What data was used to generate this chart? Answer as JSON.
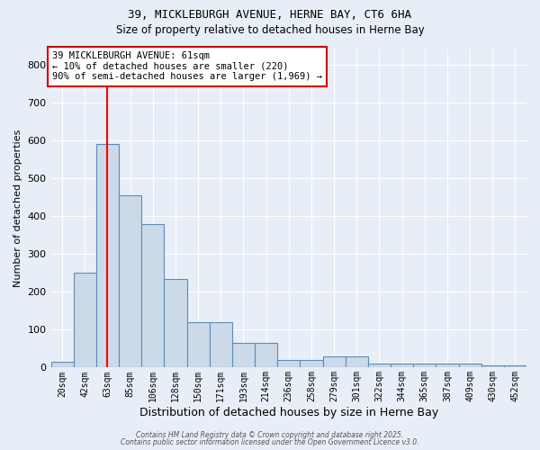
{
  "title_line1": "39, MICKLEBURGH AVENUE, HERNE BAY, CT6 6HA",
  "title_line2": "Size of property relative to detached houses in Herne Bay",
  "xlabel": "Distribution of detached houses by size in Herne Bay",
  "ylabel": "Number of detached properties",
  "bins": [
    "20sqm",
    "42sqm",
    "63sqm",
    "85sqm",
    "106sqm",
    "128sqm",
    "150sqm",
    "171sqm",
    "193sqm",
    "214sqm",
    "236sqm",
    "258sqm",
    "279sqm",
    "301sqm",
    "322sqm",
    "344sqm",
    "365sqm",
    "387sqm",
    "409sqm",
    "430sqm",
    "452sqm"
  ],
  "values": [
    15,
    250,
    590,
    455,
    380,
    235,
    120,
    120,
    65,
    65,
    20,
    20,
    30,
    30,
    10,
    10,
    10,
    10,
    10,
    5,
    5
  ],
  "bar_color": "#ccd9e8",
  "bar_edge_color": "#5b8db8",
  "red_line_index": 2,
  "ylim": [
    0,
    840
  ],
  "yticks": [
    0,
    100,
    200,
    300,
    400,
    500,
    600,
    700,
    800
  ],
  "annotation_text": "39 MICKLEBURGH AVENUE: 61sqm\n← 10% of detached houses are smaller (220)\n90% of semi-detached houses are larger (1,969) →",
  "annotation_box_color": "#ffffff",
  "annotation_box_edge_color": "#cc0000",
  "background_color": "#e8eef7",
  "grid_color": "#ffffff",
  "footer_line1": "Contains HM Land Registry data © Crown copyright and database right 2025.",
  "footer_line2": "Contains public sector information licensed under the Open Government Licence v3.0."
}
